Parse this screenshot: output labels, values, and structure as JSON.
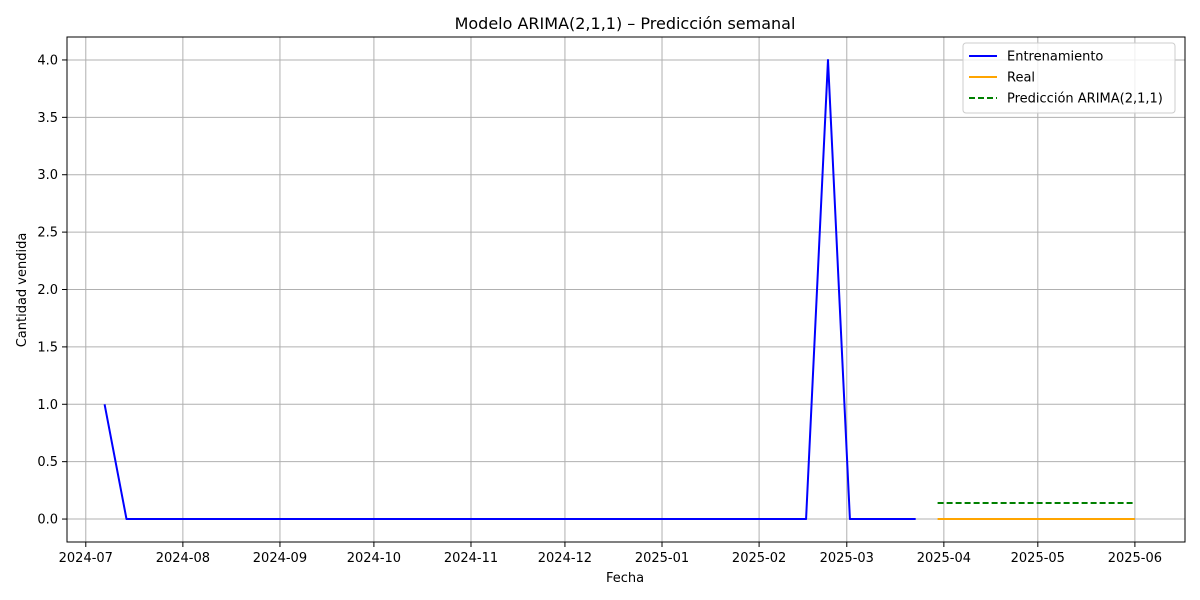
{
  "chart_data": {
    "type": "line",
    "title": "Modelo ARIMA(2,1,1) – Predicción semanal",
    "xlabel": "Fecha",
    "ylabel": "Cantidad vendida",
    "xlim": [
      "2024-06-25",
      "2025-06-17"
    ],
    "ylim": [
      -0.2,
      4.2
    ],
    "x_ticks": [
      "2024-07",
      "2024-08",
      "2024-09",
      "2024-10",
      "2024-11",
      "2024-12",
      "2025-01",
      "2025-02",
      "2025-03",
      "2025-04",
      "2025-05",
      "2025-06"
    ],
    "y_ticks": [
      "0.0",
      "0.5",
      "1.0",
      "1.5",
      "2.0",
      "2.5",
      "3.0",
      "3.5",
      "4.0"
    ],
    "grid": true,
    "legend_position": "top-right",
    "series": [
      {
        "name": "Entrenamiento",
        "color": "#0000ff",
        "style": "solid",
        "x": [
          "2024-07-07",
          "2024-07-14",
          "2024-07-21",
          "2024-07-28",
          "2024-08-04",
          "2024-08-11",
          "2024-08-18",
          "2024-08-25",
          "2024-09-01",
          "2024-09-08",
          "2024-09-15",
          "2024-09-22",
          "2024-09-29",
          "2024-10-06",
          "2024-10-13",
          "2024-10-20",
          "2024-10-27",
          "2024-11-03",
          "2024-11-10",
          "2024-11-17",
          "2024-11-24",
          "2024-12-01",
          "2024-12-08",
          "2024-12-15",
          "2024-12-22",
          "2024-12-29",
          "2025-01-05",
          "2025-01-12",
          "2025-01-19",
          "2025-01-26",
          "2025-02-02",
          "2025-02-09",
          "2025-02-16",
          "2025-02-23",
          "2025-03-02",
          "2025-03-09",
          "2025-03-16",
          "2025-03-23"
        ],
        "values": [
          1,
          0,
          0,
          0,
          0,
          0,
          0,
          0,
          0,
          0,
          0,
          0,
          0,
          0,
          0,
          0,
          0,
          0,
          0,
          0,
          0,
          0,
          0,
          0,
          0,
          0,
          0,
          0,
          0,
          0,
          0,
          0,
          0,
          4,
          0,
          0,
          0,
          0
        ]
      },
      {
        "name": "Real",
        "color": "#ffa500",
        "style": "solid",
        "x": [
          "2025-03-30",
          "2025-04-06",
          "2025-04-13",
          "2025-04-20",
          "2025-04-27",
          "2025-05-04",
          "2025-05-11",
          "2025-05-18",
          "2025-05-25",
          "2025-06-01"
        ],
        "values": [
          0,
          0,
          0,
          0,
          0,
          0,
          0,
          0,
          0,
          0
        ]
      },
      {
        "name": "Predicción ARIMA(2,1,1)",
        "color": "#008000",
        "style": "dashed",
        "x": [
          "2025-03-30",
          "2025-04-06",
          "2025-04-13",
          "2025-04-20",
          "2025-04-27",
          "2025-05-04",
          "2025-05-11",
          "2025-05-18",
          "2025-05-25",
          "2025-06-01"
        ],
        "values": [
          0.14,
          0.14,
          0.14,
          0.14,
          0.14,
          0.14,
          0.14,
          0.14,
          0.14,
          0.14
        ]
      }
    ]
  }
}
